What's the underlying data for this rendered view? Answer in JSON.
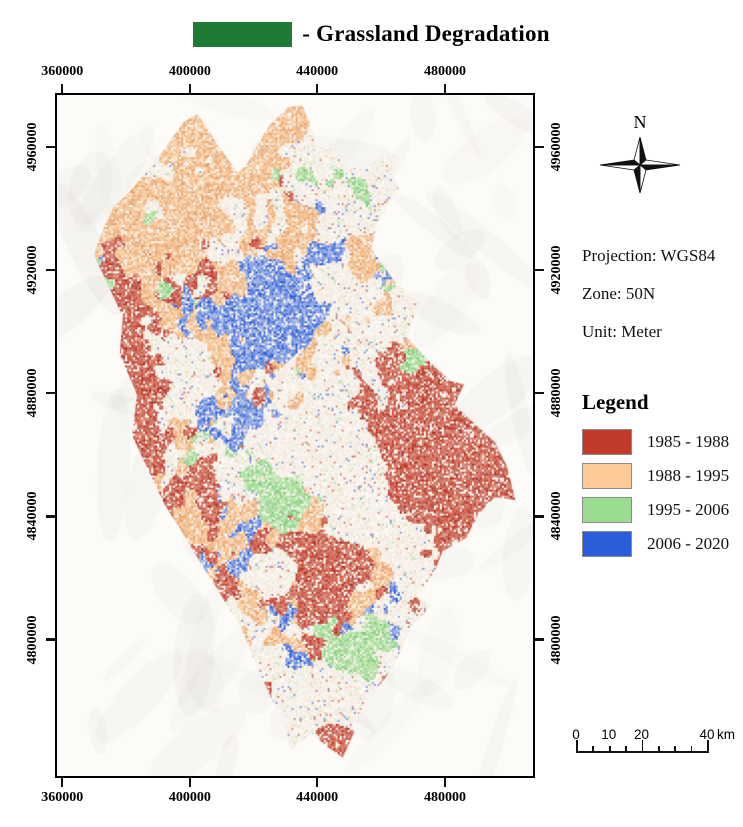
{
  "title": {
    "label": "- Grassland Degradation",
    "swatch_color": "#1e7b33"
  },
  "map": {
    "paper_color": "#fcfbf8",
    "region_base_color": "#f6f0e8",
    "x_axis": {
      "ticks": [
        {
          "label": "360000",
          "pos": 0.015
        },
        {
          "label": "400000",
          "pos": 0.281
        },
        {
          "label": "440000",
          "pos": 0.546
        },
        {
          "label": "480000",
          "pos": 0.8125
        }
      ]
    },
    "y_axis": {
      "ticks": [
        {
          "label": "4960000",
          "pos": 0.079
        },
        {
          "label": "4920000",
          "pos": 0.258
        },
        {
          "label": "4880000",
          "pos": 0.438
        },
        {
          "label": "4840000",
          "pos": 0.618
        },
        {
          "label": "4800000",
          "pos": 0.798
        }
      ]
    },
    "outline": [
      [
        26.5,
        4.0
      ],
      [
        29.5,
        2.8
      ],
      [
        33,
        6.5
      ],
      [
        38,
        11.5
      ],
      [
        40,
        10.0
      ],
      [
        44.5,
        4.5
      ],
      [
        48.5,
        1.8
      ],
      [
        51.5,
        1.5
      ],
      [
        53,
        4.0
      ],
      [
        54.5,
        7.5
      ],
      [
        58.5,
        8.0
      ],
      [
        60,
        10.5
      ],
      [
        64.5,
        11.0
      ],
      [
        68,
        9.0
      ],
      [
        71.5,
        8.8
      ],
      [
        70.5,
        11.5
      ],
      [
        71.8,
        13.8
      ],
      [
        69,
        16.5
      ],
      [
        67,
        19.5
      ],
      [
        66,
        22.5
      ],
      [
        68.5,
        25
      ],
      [
        71,
        27.5
      ],
      [
        76,
        30.5
      ],
      [
        74.5,
        33.5
      ],
      [
        73.5,
        35.5
      ],
      [
        78,
        39
      ],
      [
        82.5,
        42
      ],
      [
        85.5,
        42.5
      ],
      [
        83.5,
        45.5
      ],
      [
        86.5,
        47.5
      ],
      [
        92,
        51
      ],
      [
        94.5,
        54.5
      ],
      [
        96.3,
        59.5
      ],
      [
        92,
        59
      ],
      [
        88.5,
        61.5
      ],
      [
        86,
        65
      ],
      [
        81,
        67
      ],
      [
        79,
        70.5
      ],
      [
        75.5,
        73.5
      ],
      [
        78.5,
        75
      ],
      [
        74,
        78.5
      ],
      [
        71.5,
        83
      ],
      [
        67.5,
        87
      ],
      [
        63.5,
        90.5
      ],
      [
        62.5,
        93.5
      ],
      [
        60,
        97.3
      ],
      [
        57,
        95.8
      ],
      [
        53.5,
        93.8
      ],
      [
        49,
        96.2
      ],
      [
        47.8,
        92.5
      ],
      [
        44.5,
        87.8
      ],
      [
        41.5,
        83
      ],
      [
        38.5,
        78
      ],
      [
        34.5,
        73.5
      ],
      [
        30.5,
        69
      ],
      [
        26.5,
        64.5
      ],
      [
        22.5,
        60
      ],
      [
        19.8,
        56
      ],
      [
        15.8,
        50
      ],
      [
        16.8,
        44
      ],
      [
        13.2,
        38
      ],
      [
        13.8,
        32.5
      ],
      [
        10.8,
        28
      ],
      [
        7.8,
        23.5
      ],
      [
        9.2,
        20.5
      ],
      [
        11.8,
        16.5
      ],
      [
        15.8,
        13.8
      ],
      [
        21.5,
        9
      ]
    ]
  },
  "north_arrow": {
    "label": "N"
  },
  "metadata": {
    "projection": "Projection: WGS84",
    "zone": "Zone: 50N",
    "unit": "Unit: Meter"
  },
  "legend": {
    "heading": "Legend",
    "items": [
      {
        "label": "1985 - 1988",
        "color": "#c13a2c"
      },
      {
        "label": "1988 - 1995",
        "color": "#fbca98"
      },
      {
        "label": "1995 - 2006",
        "color": "#9adc90"
      },
      {
        "label": "2006 - 2020",
        "color": "#2a5dd9"
      }
    ]
  },
  "scale_bar": {
    "unit": "km",
    "max_km": 40,
    "tick_interval_km": 5,
    "major_ticks_km": [
      0,
      20,
      40
    ],
    "labels": [
      {
        "text": "0",
        "km": 0
      },
      {
        "text": "10",
        "km": 10
      },
      {
        "text": "20",
        "km": 20
      },
      {
        "text": "40",
        "km": 40
      }
    ]
  }
}
